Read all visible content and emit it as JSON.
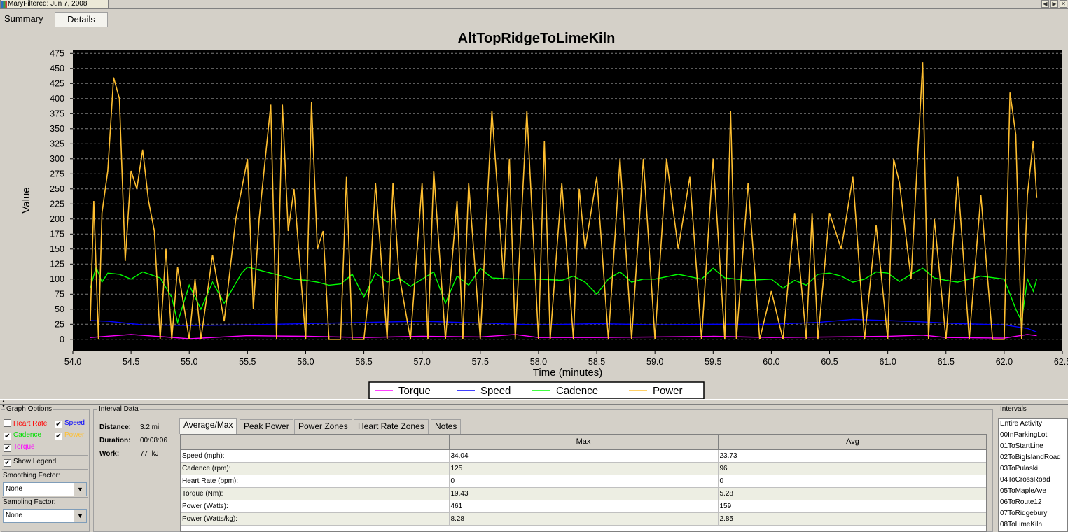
{
  "window": {
    "title": "MaryFiltered: Jun 7, 2008"
  },
  "tabs": [
    {
      "label": "Summary"
    },
    {
      "label": "Details"
    }
  ],
  "chart_data": {
    "type": "line",
    "title": "AltTopRidgeToLimeKiln",
    "xlabel": "Time (minutes)",
    "ylabel": "Value",
    "xlim": [
      54.0,
      62.5
    ],
    "ylim": [
      -20,
      480
    ],
    "x_ticks": [
      "54.0",
      "54.5",
      "55.0",
      "55.5",
      "56.0",
      "56.5",
      "57.0",
      "57.5",
      "58.0",
      "58.5",
      "59.0",
      "59.5",
      "60.0",
      "60.5",
      "61.0",
      "61.5",
      "62.0",
      "62.5"
    ],
    "y_ticks": [
      "0",
      "25",
      "50",
      "75",
      "100",
      "125",
      "150",
      "175",
      "200",
      "225",
      "250",
      "275",
      "300",
      "325",
      "350",
      "375",
      "400",
      "425",
      "450",
      "475"
    ],
    "grid": true,
    "legend_position": "bottom",
    "series": [
      {
        "name": "Torque",
        "color": "#ff00ff",
        "x": [
          54.15,
          54.5,
          54.8,
          55.0,
          55.5,
          56.0,
          56.5,
          57.0,
          57.5,
          57.8,
          58.0,
          58.5,
          59.0,
          59.5,
          60.0,
          60.5,
          61.0,
          61.3,
          61.5,
          62.0,
          62.2,
          62.28
        ],
        "values": [
          3,
          8,
          4,
          1,
          6,
          5,
          3,
          5,
          4,
          8,
          3,
          3,
          4,
          5,
          3,
          4,
          5,
          7,
          3,
          2,
          8,
          6
        ]
      },
      {
        "name": "Speed",
        "color": "#0000ff",
        "x": [
          54.15,
          54.3,
          54.6,
          55.0,
          55.5,
          56.0,
          56.5,
          57.0,
          57.5,
          58.0,
          58.5,
          59.0,
          59.5,
          60.0,
          60.4,
          60.7,
          61.0,
          61.3,
          61.6,
          62.0,
          62.2,
          62.28
        ],
        "values": [
          31,
          30,
          24,
          23,
          24,
          26,
          28,
          30,
          27,
          24,
          26,
          24,
          25,
          25,
          28,
          33,
          31,
          29,
          26,
          24,
          18,
          12
        ]
      },
      {
        "name": "Cadence",
        "color": "#00ff00",
        "x": [
          54.15,
          54.2,
          54.25,
          54.3,
          54.4,
          54.5,
          54.6,
          54.75,
          54.85,
          54.9,
          55.0,
          55.1,
          55.2,
          55.3,
          55.45,
          55.5,
          55.6,
          55.8,
          55.9,
          56.0,
          56.1,
          56.2,
          56.3,
          56.4,
          56.5,
          56.6,
          56.7,
          56.8,
          56.9,
          57.0,
          57.1,
          57.2,
          57.3,
          57.4,
          57.5,
          57.6,
          57.8,
          58.0,
          58.2,
          58.3,
          58.4,
          58.5,
          58.6,
          58.7,
          58.8,
          58.9,
          59.0,
          59.2,
          59.4,
          59.5,
          59.6,
          59.8,
          60.0,
          60.1,
          60.2,
          60.3,
          60.4,
          60.5,
          60.6,
          60.7,
          60.8,
          60.9,
          61.0,
          61.1,
          61.2,
          61.3,
          61.4,
          61.5,
          61.6,
          61.7,
          61.8,
          62.0,
          62.1,
          62.15,
          62.2,
          62.25,
          62.28
        ],
        "values": [
          85,
          120,
          95,
          110,
          108,
          100,
          112,
          102,
          70,
          28,
          90,
          50,
          95,
          60,
          110,
          120,
          115,
          105,
          100,
          98,
          95,
          90,
          92,
          108,
          70,
          110,
          95,
          102,
          88,
          100,
          112,
          60,
          105,
          90,
          118,
          102,
          100,
          100,
          98,
          105,
          95,
          75,
          100,
          112,
          95,
          100,
          100,
          108,
          100,
          118,
          102,
          98,
          100,
          85,
          98,
          90,
          108,
          110,
          105,
          95,
          100,
          112,
          110,
          96,
          108,
          118,
          102,
          98,
          95,
          100,
          105,
          100,
          50,
          30,
          100,
          80,
          100
        ]
      },
      {
        "name": "Power",
        "color": "#ffbf30",
        "x": [
          54.15,
          54.18,
          54.22,
          54.25,
          54.3,
          54.35,
          54.4,
          54.45,
          54.5,
          54.55,
          54.6,
          54.65,
          54.7,
          54.75,
          54.8,
          54.85,
          54.9,
          55.0,
          55.05,
          55.1,
          55.2,
          55.3,
          55.4,
          55.5,
          55.55,
          55.6,
          55.7,
          55.75,
          55.8,
          55.85,
          55.9,
          56.0,
          56.05,
          56.1,
          56.15,
          56.2,
          56.3,
          56.35,
          56.4,
          56.5,
          56.55,
          56.6,
          56.7,
          56.75,
          56.8,
          56.9,
          57.0,
          57.05,
          57.1,
          57.2,
          57.3,
          57.35,
          57.4,
          57.5,
          57.6,
          57.7,
          57.75,
          57.8,
          57.9,
          58.0,
          58.05,
          58.1,
          58.2,
          58.3,
          58.35,
          58.4,
          58.5,
          58.6,
          58.7,
          58.8,
          58.9,
          59.0,
          59.1,
          59.2,
          59.3,
          59.4,
          59.5,
          59.6,
          59.65,
          59.7,
          59.8,
          59.9,
          60.0,
          60.1,
          60.2,
          60.3,
          60.35,
          60.4,
          60.5,
          60.6,
          60.7,
          60.8,
          60.9,
          61.0,
          61.05,
          61.1,
          61.2,
          61.3,
          61.35,
          61.4,
          61.5,
          61.6,
          61.7,
          61.8,
          61.9,
          62.0,
          62.05,
          62.1,
          62.15,
          62.2,
          62.25,
          62.28
        ],
        "values": [
          30,
          230,
          0,
          210,
          280,
          435,
          400,
          130,
          280,
          250,
          315,
          230,
          180,
          0,
          150,
          0,
          120,
          0,
          100,
          0,
          140,
          30,
          200,
          300,
          50,
          200,
          390,
          0,
          390,
          180,
          250,
          0,
          395,
          150,
          180,
          0,
          0,
          270,
          0,
          0,
          90,
          260,
          0,
          260,
          110,
          0,
          260,
          0,
          280,
          0,
          230,
          0,
          260,
          0,
          380,
          100,
          300,
          0,
          380,
          0,
          330,
          0,
          260,
          0,
          250,
          150,
          270,
          0,
          300,
          0,
          300,
          0,
          300,
          150,
          270,
          0,
          300,
          0,
          380,
          0,
          260,
          0,
          80,
          0,
          210,
          0,
          210,
          0,
          210,
          150,
          270,
          0,
          190,
          0,
          300,
          260,
          100,
          460,
          0,
          200,
          0,
          270,
          0,
          240,
          0,
          0,
          410,
          340,
          0,
          240,
          330,
          235
        ]
      }
    ]
  },
  "graph_options": {
    "label": "Graph Options",
    "checkboxes": [
      {
        "label": "Heart Rate",
        "checked": false,
        "color": "#ff0000"
      },
      {
        "label": "Speed",
        "checked": true,
        "color": "#0000ff"
      },
      {
        "label": "Cadence",
        "checked": true,
        "color": "#00ff00"
      },
      {
        "label": "Power",
        "checked": true,
        "color": "#ffbf30"
      },
      {
        "label": "Torque",
        "checked": true,
        "color": "#ff00ff"
      }
    ],
    "show_legend": {
      "label": "Show Legend",
      "checked": true
    },
    "smoothing": {
      "label": "Smoothing Factor:",
      "value": "None"
    },
    "sampling": {
      "label": "Sampling Factor:",
      "value": "None"
    }
  },
  "interval_data": {
    "label": "Interval Data",
    "distance_label": "Distance:",
    "distance_value": "3.2 mi",
    "duration_label": "Duration:",
    "duration_value": "00:08:06",
    "work_label": "Work:",
    "work_value": "77  kJ"
  },
  "detail_tabs": [
    {
      "label": "Average/Max",
      "active": true
    },
    {
      "label": "Peak Power"
    },
    {
      "label": "Power Zones"
    },
    {
      "label": "Heart Rate Zones"
    },
    {
      "label": "Notes"
    }
  ],
  "stats_table": {
    "headers": [
      "",
      "Max",
      "Avg"
    ],
    "rows": [
      [
        "Speed (mph):",
        "34.04",
        "23.73"
      ],
      [
        "Cadence (rpm):",
        "125",
        "96"
      ],
      [
        "Heart Rate (bpm):",
        "0",
        "0"
      ],
      [
        "Torque (Nm):",
        "19.43",
        "5.28"
      ],
      [
        "Power (Watts):",
        "461",
        "159"
      ],
      [
        "Power (Watts/kg):",
        "8.28",
        "2.85"
      ]
    ]
  },
  "intervals": {
    "label": "Intervals",
    "items": [
      "Entire Activity",
      "00InParkingLot",
      "01ToStartLine",
      "02ToBigIslandRoad",
      "03ToPulaski",
      "04ToCrossRoad",
      "05ToMapleAve",
      "06ToRoute12",
      "07ToRidgebury",
      "08ToLimeKiln"
    ]
  }
}
